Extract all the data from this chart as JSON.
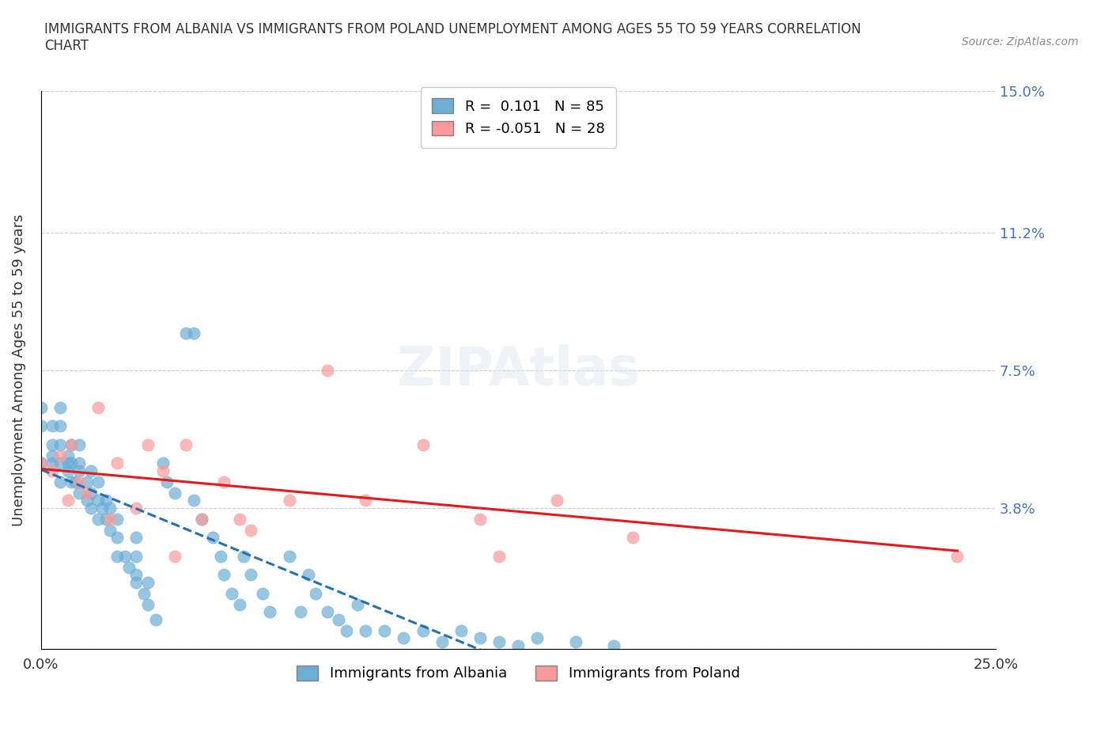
{
  "title": "IMMIGRANTS FROM ALBANIA VS IMMIGRANTS FROM POLAND UNEMPLOYMENT AMONG AGES 55 TO 59 YEARS CORRELATION\nCHART",
  "source_text": "Source: ZipAtlas.com",
  "xlabel": "",
  "ylabel": "Unemployment Among Ages 55 to 59 years",
  "xlim": [
    0.0,
    0.25
  ],
  "ylim": [
    0.0,
    0.15
  ],
  "xticks": [
    0.0,
    0.05,
    0.1,
    0.15,
    0.2,
    0.25
  ],
  "xticklabels": [
    "0.0%",
    "",
    "",
    "",
    "",
    "25.0%"
  ],
  "ytick_positions": [
    0.0,
    0.038,
    0.075,
    0.112,
    0.15
  ],
  "yticklabels": [
    "",
    "3.8%",
    "7.5%",
    "11.2%",
    "15.0%"
  ],
  "legend_r_albania": "0.101",
  "legend_n_albania": "85",
  "legend_r_poland": "-0.051",
  "legend_n_poland": "28",
  "albania_color": "#6baed6",
  "poland_color": "#fb9a99",
  "trendline_albania_color": "#2171b5",
  "trendline_poland_color": "#e31a1c",
  "grid_color": "#cccccc",
  "watermark_text": "ZIPAtlas",
  "albania_x": [
    0.0,
    0.0,
    0.0,
    0.003,
    0.003,
    0.003,
    0.003,
    0.005,
    0.005,
    0.005,
    0.005,
    0.005,
    0.007,
    0.007,
    0.007,
    0.008,
    0.008,
    0.008,
    0.009,
    0.01,
    0.01,
    0.01,
    0.01,
    0.012,
    0.012,
    0.013,
    0.013,
    0.013,
    0.015,
    0.015,
    0.015,
    0.016,
    0.017,
    0.017,
    0.018,
    0.018,
    0.02,
    0.02,
    0.02,
    0.022,
    0.023,
    0.025,
    0.025,
    0.025,
    0.025,
    0.027,
    0.028,
    0.028,
    0.03,
    0.032,
    0.033,
    0.035,
    0.038,
    0.04,
    0.04,
    0.042,
    0.045,
    0.047,
    0.048,
    0.05,
    0.052,
    0.053,
    0.055,
    0.058,
    0.06,
    0.065,
    0.068,
    0.07,
    0.072,
    0.075,
    0.078,
    0.08,
    0.083,
    0.085,
    0.09,
    0.095,
    0.1,
    0.105,
    0.11,
    0.115,
    0.12,
    0.125,
    0.13,
    0.14,
    0.15
  ],
  "albania_y": [
    0.05,
    0.06,
    0.065,
    0.05,
    0.052,
    0.055,
    0.06,
    0.045,
    0.05,
    0.055,
    0.06,
    0.065,
    0.048,
    0.05,
    0.052,
    0.045,
    0.05,
    0.055,
    0.045,
    0.042,
    0.048,
    0.05,
    0.055,
    0.04,
    0.045,
    0.038,
    0.042,
    0.048,
    0.035,
    0.04,
    0.045,
    0.038,
    0.035,
    0.04,
    0.032,
    0.038,
    0.025,
    0.03,
    0.035,
    0.025,
    0.022,
    0.018,
    0.02,
    0.025,
    0.03,
    0.015,
    0.012,
    0.018,
    0.008,
    0.05,
    0.045,
    0.042,
    0.085,
    0.085,
    0.04,
    0.035,
    0.03,
    0.025,
    0.02,
    0.015,
    0.012,
    0.025,
    0.02,
    0.015,
    0.01,
    0.025,
    0.01,
    0.02,
    0.015,
    0.01,
    0.008,
    0.005,
    0.012,
    0.005,
    0.005,
    0.003,
    0.005,
    0.002,
    0.005,
    0.003,
    0.002,
    0.001,
    0.003,
    0.002,
    0.001
  ],
  "poland_x": [
    0.0,
    0.003,
    0.005,
    0.007,
    0.008,
    0.01,
    0.012,
    0.015,
    0.018,
    0.02,
    0.025,
    0.028,
    0.032,
    0.035,
    0.038,
    0.042,
    0.048,
    0.052,
    0.055,
    0.065,
    0.075,
    0.085,
    0.1,
    0.115,
    0.12,
    0.135,
    0.155,
    0.24
  ],
  "poland_y": [
    0.05,
    0.048,
    0.052,
    0.04,
    0.055,
    0.045,
    0.042,
    0.065,
    0.035,
    0.05,
    0.038,
    0.055,
    0.048,
    0.025,
    0.055,
    0.035,
    0.045,
    0.035,
    0.032,
    0.04,
    0.075,
    0.04,
    0.055,
    0.035,
    0.025,
    0.04,
    0.03,
    0.025
  ]
}
